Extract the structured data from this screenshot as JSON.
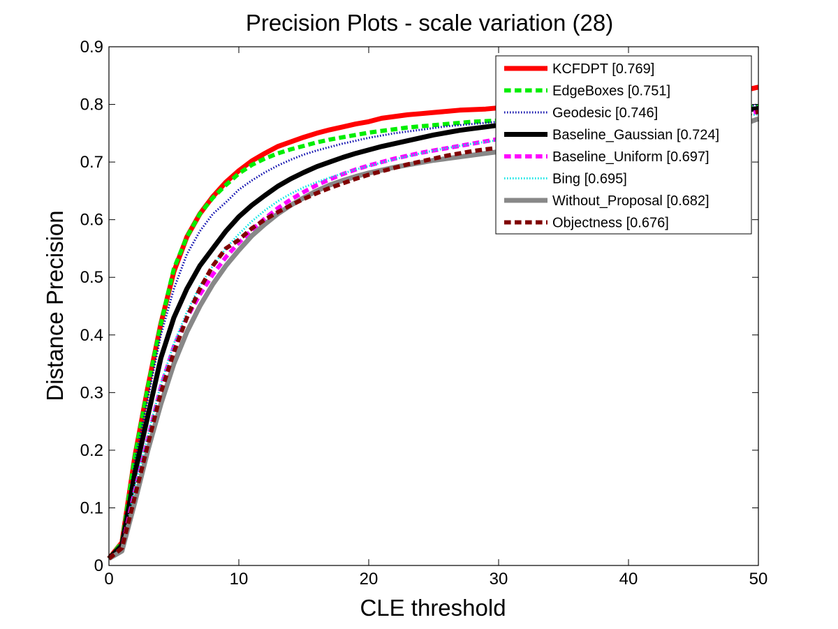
{
  "chart_data": {
    "type": "line",
    "title": "Precision Plots - scale variation (28)",
    "xlabel": "CLE threshold",
    "ylabel": "Distance Precision",
    "xlim": [
      0,
      50
    ],
    "ylim": [
      0,
      0.9
    ],
    "xticks": [
      "0",
      "10",
      "20",
      "30",
      "40",
      "50"
    ],
    "yticks": [
      "0",
      "0.1",
      "0.2",
      "0.3",
      "0.4",
      "0.5",
      "0.6",
      "0.7",
      "0.8",
      "0.9"
    ],
    "grid": false,
    "legend_position": "top-right",
    "x": [
      0,
      1,
      2,
      3,
      4,
      5,
      6,
      7,
      8,
      9,
      10,
      11,
      12,
      13,
      14,
      15,
      16,
      17,
      18,
      19,
      20,
      21,
      22,
      23,
      24,
      25,
      26,
      27,
      28,
      29,
      30,
      31,
      32,
      33,
      34,
      35,
      36,
      37,
      38,
      39,
      40,
      41,
      42,
      43,
      44,
      45,
      46,
      47,
      48,
      49,
      50
    ],
    "series": [
      {
        "name": "KCFDPT [0.769]",
        "color": "#ff0000",
        "dash": "solid",
        "width": 7,
        "values": [
          0.012,
          0.04,
          0.19,
          0.31,
          0.42,
          0.51,
          0.57,
          0.61,
          0.64,
          0.665,
          0.685,
          0.702,
          0.715,
          0.727,
          0.735,
          0.743,
          0.75,
          0.756,
          0.761,
          0.766,
          0.77,
          0.776,
          0.779,
          0.782,
          0.784,
          0.786,
          0.788,
          0.79,
          0.791,
          0.792,
          0.794,
          0.795,
          0.797,
          0.798,
          0.8,
          0.801,
          0.802,
          0.803,
          0.805,
          0.806,
          0.808,
          0.809,
          0.81,
          0.812,
          0.814,
          0.816,
          0.818,
          0.82,
          0.822,
          0.825,
          0.83
        ]
      },
      {
        "name": "EdgeBoxes [0.751]",
        "color": "#00ee00",
        "dash": "dashed",
        "width": 6,
        "values": [
          0.012,
          0.04,
          0.19,
          0.31,
          0.42,
          0.515,
          0.57,
          0.61,
          0.638,
          0.66,
          0.68,
          0.695,
          0.706,
          0.715,
          0.722,
          0.728,
          0.734,
          0.739,
          0.743,
          0.747,
          0.751,
          0.754,
          0.757,
          0.76,
          0.762,
          0.764,
          0.766,
          0.768,
          0.77,
          0.771,
          0.772,
          0.773,
          0.774,
          0.775,
          0.776,
          0.777,
          0.778,
          0.779,
          0.78,
          0.781,
          0.782,
          0.783,
          0.784,
          0.785,
          0.786,
          0.787,
          0.789,
          0.791,
          0.793,
          0.795,
          0.797
        ]
      },
      {
        "name": "Geodesic [0.746]",
        "color": "#0000aa",
        "dash": "dotted",
        "width": 3,
        "values": [
          0.012,
          0.04,
          0.18,
          0.29,
          0.4,
          0.48,
          0.54,
          0.58,
          0.61,
          0.63,
          0.652,
          0.668,
          0.682,
          0.694,
          0.704,
          0.713,
          0.72,
          0.726,
          0.732,
          0.737,
          0.742,
          0.746,
          0.75,
          0.753,
          0.756,
          0.759,
          0.762,
          0.764,
          0.766,
          0.768,
          0.77,
          0.771,
          0.772,
          0.773,
          0.774,
          0.775,
          0.776,
          0.777,
          0.778,
          0.779,
          0.78,
          0.781,
          0.782,
          0.783,
          0.785,
          0.787,
          0.789,
          0.791,
          0.793,
          0.796,
          0.8
        ]
      },
      {
        "name": "Baseline_Gaussian [0.724]",
        "color": "#000000",
        "dash": "solid",
        "width": 7,
        "values": [
          0.012,
          0.035,
          0.16,
          0.26,
          0.36,
          0.43,
          0.48,
          0.52,
          0.55,
          0.58,
          0.605,
          0.625,
          0.642,
          0.658,
          0.671,
          0.682,
          0.692,
          0.7,
          0.708,
          0.715,
          0.721,
          0.727,
          0.732,
          0.737,
          0.742,
          0.747,
          0.751,
          0.755,
          0.758,
          0.761,
          0.764,
          0.766,
          0.768,
          0.77,
          0.771,
          0.772,
          0.773,
          0.774,
          0.775,
          0.776,
          0.777,
          0.778,
          0.779,
          0.78,
          0.781,
          0.782,
          0.783,
          0.785,
          0.787,
          0.79,
          0.793
        ]
      },
      {
        "name": "Baseline_Uniform [0.697]",
        "color": "#ff00ff",
        "dash": "dashed",
        "width": 6,
        "values": [
          0.012,
          0.03,
          0.13,
          0.22,
          0.31,
          0.38,
          0.43,
          0.47,
          0.505,
          0.535,
          0.56,
          0.582,
          0.602,
          0.62,
          0.635,
          0.648,
          0.66,
          0.67,
          0.679,
          0.687,
          0.694,
          0.7,
          0.706,
          0.711,
          0.716,
          0.72,
          0.724,
          0.728,
          0.732,
          0.736,
          0.74,
          0.743,
          0.746,
          0.749,
          0.752,
          0.755,
          0.757,
          0.759,
          0.761,
          0.763,
          0.765,
          0.767,
          0.769,
          0.771,
          0.773,
          0.775,
          0.777,
          0.779,
          0.781,
          0.784,
          0.787
        ]
      },
      {
        "name": "Bing [0.695]",
        "color": "#00e5e5",
        "dash": "dotted",
        "width": 3,
        "values": [
          0.012,
          0.03,
          0.135,
          0.225,
          0.315,
          0.385,
          0.44,
          0.485,
          0.52,
          0.55,
          0.575,
          0.597,
          0.616,
          0.632,
          0.645,
          0.656,
          0.665,
          0.673,
          0.68,
          0.687,
          0.693,
          0.699,
          0.705,
          0.71,
          0.715,
          0.72,
          0.724,
          0.728,
          0.732,
          0.735,
          0.738,
          0.741,
          0.744,
          0.747,
          0.749,
          0.751,
          0.753,
          0.755,
          0.757,
          0.759,
          0.761,
          0.763,
          0.765,
          0.767,
          0.769,
          0.771,
          0.773,
          0.775,
          0.777,
          0.78,
          0.783
        ]
      },
      {
        "name": "Without_Proposal [0.682]",
        "color": "#888888",
        "dash": "solid",
        "width": 7,
        "values": [
          0.012,
          0.025,
          0.11,
          0.2,
          0.28,
          0.35,
          0.405,
          0.45,
          0.488,
          0.52,
          0.547,
          0.572,
          0.592,
          0.61,
          0.625,
          0.638,
          0.65,
          0.66,
          0.668,
          0.675,
          0.681,
          0.686,
          0.691,
          0.695,
          0.699,
          0.703,
          0.706,
          0.709,
          0.712,
          0.715,
          0.718,
          0.72,
          0.722,
          0.724,
          0.726,
          0.728,
          0.73,
          0.732,
          0.734,
          0.736,
          0.738,
          0.74,
          0.742,
          0.744,
          0.746,
          0.749,
          0.752,
          0.756,
          0.761,
          0.767,
          0.775
        ]
      },
      {
        "name": "Objectness [0.676]",
        "color": "#800000",
        "dash": "dashed",
        "width": 6,
        "values": [
          0.012,
          0.03,
          0.12,
          0.21,
          0.3,
          0.37,
          0.43,
          0.48,
          0.52,
          0.55,
          0.565,
          0.585,
          0.6,
          0.613,
          0.625,
          0.636,
          0.646,
          0.655,
          0.663,
          0.671,
          0.678,
          0.684,
          0.69,
          0.696,
          0.701,
          0.706,
          0.711,
          0.715,
          0.719,
          0.722,
          0.725,
          0.728,
          0.731,
          0.734,
          0.737,
          0.74,
          0.743,
          0.746,
          0.749,
          0.752,
          0.755,
          0.758,
          0.761,
          0.764,
          0.767,
          0.77,
          0.773,
          0.776,
          0.779,
          0.783,
          0.787
        ]
      }
    ]
  }
}
